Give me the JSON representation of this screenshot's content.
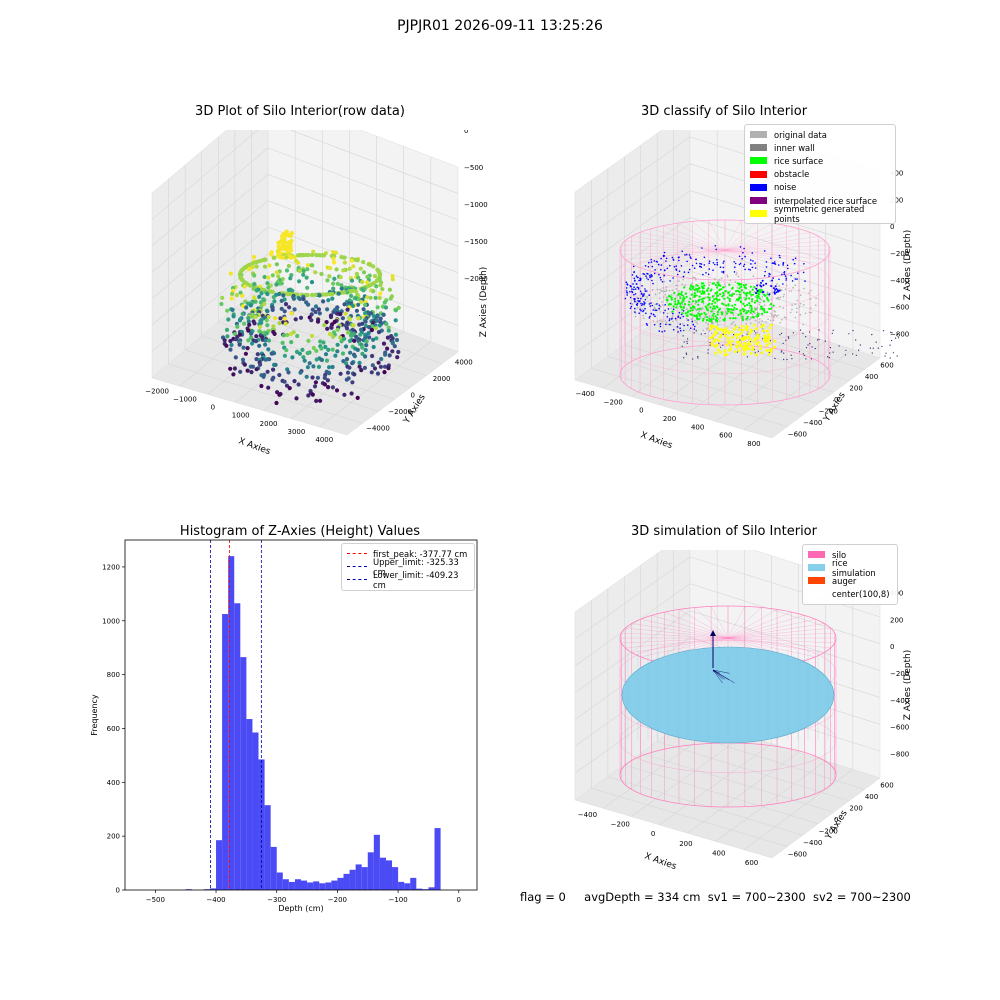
{
  "suptitle": "PJPJR01 2026-09-11 13:25:26",
  "chart_data": [
    {
      "type": "scatter",
      "title": "3D Plot of Silo Interior(row data)",
      "xlabel": "X Axies",
      "ylabel": "Y Axies",
      "zlabel": "Z Axies (Depth)",
      "x_ticks": [
        "−2000",
        "−1000",
        "0",
        "1000",
        "2000",
        "3000",
        "4000"
      ],
      "y_ticks": [
        "−4000",
        "−2000",
        "0",
        "2000",
        "4000"
      ],
      "z_ticks": [
        "−2000",
        "−1500",
        "−1000",
        "−500",
        "0"
      ],
      "xlim": [
        -2500,
        4500
      ],
      "ylim": [
        -4500,
        4500
      ],
      "zlim": [
        -2300,
        0
      ],
      "colormap": "viridis"
    },
    {
      "type": "scatter",
      "title": "3D classify of Silo Interior",
      "xlabel": "X Axies",
      "ylabel": "Y Axies",
      "zlabel": "Z Axies (Depth)",
      "x_ticks": [
        "−400",
        "−200",
        "0",
        "200",
        "400",
        "600",
        "800"
      ],
      "y_ticks": [
        "−600",
        "−400",
        "−200",
        "0",
        "200",
        "400",
        "600"
      ],
      "z_ticks": [
        "−800",
        "−600",
        "−400",
        "−200",
        "0",
        "200",
        "400"
      ],
      "xlim": [
        -500,
        800
      ],
      "ylim": [
        -650,
        650
      ],
      "zlim": [
        -900,
        400
      ],
      "legend": [
        {
          "label": "original data",
          "color": "#b0b0b0"
        },
        {
          "label": "inner wall",
          "color": "#808080"
        },
        {
          "label": "rice surface",
          "color": "#00ff00"
        },
        {
          "label": "obstacle",
          "color": "#ff0000"
        },
        {
          "label": "noise",
          "color": "#0000ff"
        },
        {
          "label": "interpolated rice surface",
          "color": "#800080"
        },
        {
          "label": "symmetric generated points",
          "color": "#ffff00"
        }
      ]
    },
    {
      "type": "bar",
      "title": "Histogram of Z-Axies (Height) Values",
      "xlabel": "Depth (cm)",
      "ylabel": "Frequency",
      "xlim": [
        -550,
        30
      ],
      "ylim": [
        0,
        1300
      ],
      "bin_width": 10,
      "x_ticks": [
        -500,
        -400,
        -300,
        -200,
        -100,
        0
      ],
      "y_ticks": [
        0,
        200,
        400,
        600,
        800,
        1000,
        1200
      ],
      "bar_color": "#4b4bf5",
      "bins": [
        {
          "x": -450,
          "value": 3
        },
        {
          "x": -420,
          "value": 3
        },
        {
          "x": -410,
          "value": 6
        },
        {
          "x": -400,
          "value": 185
        },
        {
          "x": -390,
          "value": 1025
        },
        {
          "x": -380,
          "value": 1240
        },
        {
          "x": -370,
          "value": 1065
        },
        {
          "x": -360,
          "value": 865
        },
        {
          "x": -350,
          "value": 635
        },
        {
          "x": -340,
          "value": 585
        },
        {
          "x": -330,
          "value": 485
        },
        {
          "x": -320,
          "value": 315
        },
        {
          "x": -310,
          "value": 160
        },
        {
          "x": -300,
          "value": 65
        },
        {
          "x": -290,
          "value": 40
        },
        {
          "x": -280,
          "value": 30
        },
        {
          "x": -270,
          "value": 40
        },
        {
          "x": -260,
          "value": 35
        },
        {
          "x": -250,
          "value": 28
        },
        {
          "x": -240,
          "value": 32
        },
        {
          "x": -230,
          "value": 25
        },
        {
          "x": -220,
          "value": 28
        },
        {
          "x": -210,
          "value": 35
        },
        {
          "x": -200,
          "value": 45
        },
        {
          "x": -190,
          "value": 60
        },
        {
          "x": -180,
          "value": 75
        },
        {
          "x": -170,
          "value": 95
        },
        {
          "x": -160,
          "value": 85
        },
        {
          "x": -150,
          "value": 140
        },
        {
          "x": -140,
          "value": 205
        },
        {
          "x": -130,
          "value": 120
        },
        {
          "x": -120,
          "value": 110
        },
        {
          "x": -110,
          "value": 85
        },
        {
          "x": -100,
          "value": 30
        },
        {
          "x": -90,
          "value": 25
        },
        {
          "x": -80,
          "value": 45
        },
        {
          "x": -70,
          "value": 5
        },
        {
          "x": -60,
          "value": 3
        },
        {
          "x": -50,
          "value": 10
        },
        {
          "x": -40,
          "value": 230
        }
      ],
      "lines": [
        {
          "label": "first_peak: -377.77 cm",
          "x": -377.77,
          "color": "#ff0000"
        },
        {
          "label": "Upper_limit: -325.33 cm",
          "x": -325.33,
          "color": "#0000aa"
        },
        {
          "label": "Lower_limit: -409.23 cm",
          "x": -409.23,
          "color": "#0000aa"
        }
      ]
    },
    {
      "type": "scatter",
      "title": "3D simulation of Silo Interior",
      "xlabel": "X Axies",
      "ylabel": "Y Axies",
      "zlabel": "Z Axies (Depth)",
      "x_ticks": [
        "−400",
        "−200",
        "0",
        "200",
        "400",
        "600"
      ],
      "y_ticks": [
        "−600",
        "−400",
        "−200",
        "0",
        "200",
        "400",
        "600"
      ],
      "z_ticks": [
        "−800",
        "−600",
        "−400",
        "−200",
        "0",
        "200",
        "400"
      ],
      "xlim": [
        -500,
        700
      ],
      "ylim": [
        -650,
        650
      ],
      "zlim": [
        -900,
        450
      ],
      "legend": [
        {
          "label": "silo",
          "color": "#ff69b4"
        },
        {
          "label": "rice simulation",
          "color": "#87ceeb"
        },
        {
          "label": "auger",
          "color": "#ff4500"
        },
        {
          "label": "center(100,8)",
          "color": "#ffffff"
        }
      ]
    }
  ],
  "status": {
    "flag": "flag = 0",
    "avg": "avgDepth = 334 cm",
    "sv1": "sv1 = 700~2300",
    "sv2": "sv2 = 700~2300"
  }
}
